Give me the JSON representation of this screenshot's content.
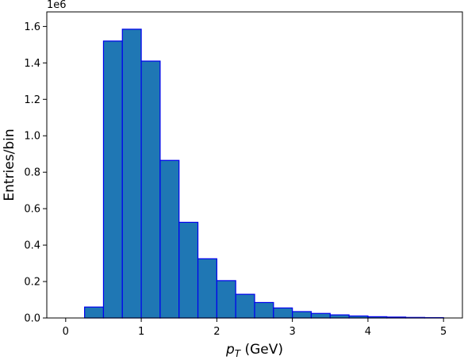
{
  "chart_data": {
    "type": "bar",
    "xlabel_main": "p",
    "xlabel_sub": "T",
    "xlabel_rest": " (GeV)",
    "ylabel": "Entries/bin",
    "y_offset_label": "1e6",
    "xlim": [
      -0.25,
      5.25
    ],
    "ylim": [
      0,
      1.68
    ],
    "grid": false,
    "bin_width": 0.25,
    "bin_edges_start": [
      0.25,
      0.5,
      0.75,
      1.0,
      1.25,
      1.5,
      1.75,
      2.0,
      2.25,
      2.5,
      2.75,
      3.0,
      3.25,
      3.5,
      3.75,
      4.0,
      4.25,
      4.5,
      4.75
    ],
    "values": [
      0.06,
      1.52,
      1.585,
      1.41,
      0.865,
      0.525,
      0.325,
      0.205,
      0.13,
      0.085,
      0.055,
      0.035,
      0.025,
      0.017,
      0.011,
      0.007,
      0.005,
      0.003,
      0.002
    ],
    "x_ticks": [
      0,
      1,
      2,
      3,
      4,
      5
    ],
    "x_tick_labels": [
      "0",
      "1",
      "2",
      "3",
      "4",
      "5"
    ],
    "y_ticks": [
      0,
      0.2,
      0.4,
      0.6,
      0.8,
      1.0,
      1.2,
      1.4,
      1.6
    ],
    "y_tick_labels": [
      "0.0",
      "0.2",
      "0.4",
      "0.6",
      "0.8",
      "1.0",
      "1.2",
      "1.4",
      "1.6"
    ],
    "colors": {
      "bar_fill": "#1f77b4",
      "bar_edge": "#0000ee"
    }
  }
}
